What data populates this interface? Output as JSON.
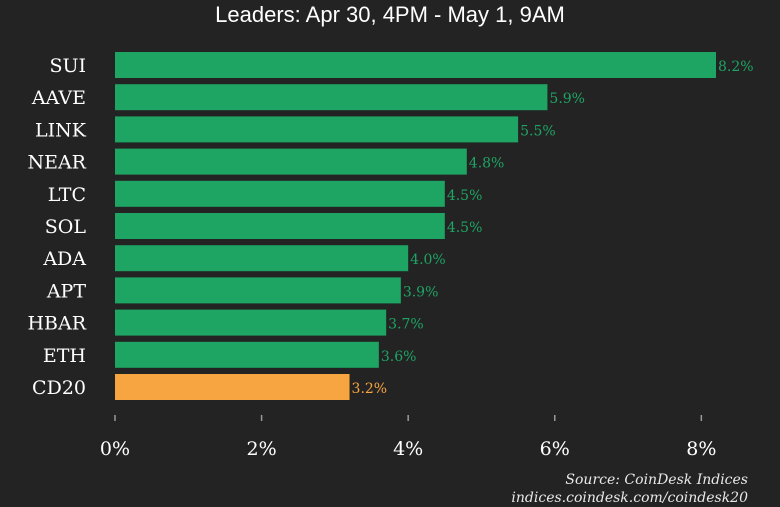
{
  "title": "Leaders: Apr 30, 4PM - May 1, 9AM",
  "source": "Source: CoinDesk Indices",
  "url": "indices.coindesk.com/coindesk20",
  "colors": {
    "background": "#232323",
    "bar": "#1ea463",
    "highlight": "#f7a540",
    "bar_label": "#1ea463",
    "highlight_label": "#f7a540",
    "text": "#ffffff",
    "tick": "#9a9a9a"
  },
  "chart_data": {
    "type": "bar",
    "orientation": "horizontal",
    "categories": [
      "SUI",
      "AAVE",
      "LINK",
      "NEAR",
      "LTC",
      "SOL",
      "ADA",
      "APT",
      "HBAR",
      "ETH",
      "CD20"
    ],
    "values": [
      8.2,
      5.9,
      5.5,
      4.8,
      4.5,
      4.5,
      4.0,
      3.9,
      3.7,
      3.6,
      3.2
    ],
    "labels": [
      "8.2%",
      "5.9%",
      "5.5%",
      "4.8%",
      "4.5%",
      "4.5%",
      "4.0%",
      "3.9%",
      "3.7%",
      "3.6%",
      "3.2%"
    ],
    "highlight": [
      "CD20"
    ],
    "xticks": [
      0,
      2,
      4,
      6,
      8
    ],
    "xtick_labels": [
      "0%",
      "2%",
      "4%",
      "6%",
      "8%"
    ],
    "xlim": [
      0,
      8.2
    ],
    "grid": false,
    "legend": "none"
  }
}
